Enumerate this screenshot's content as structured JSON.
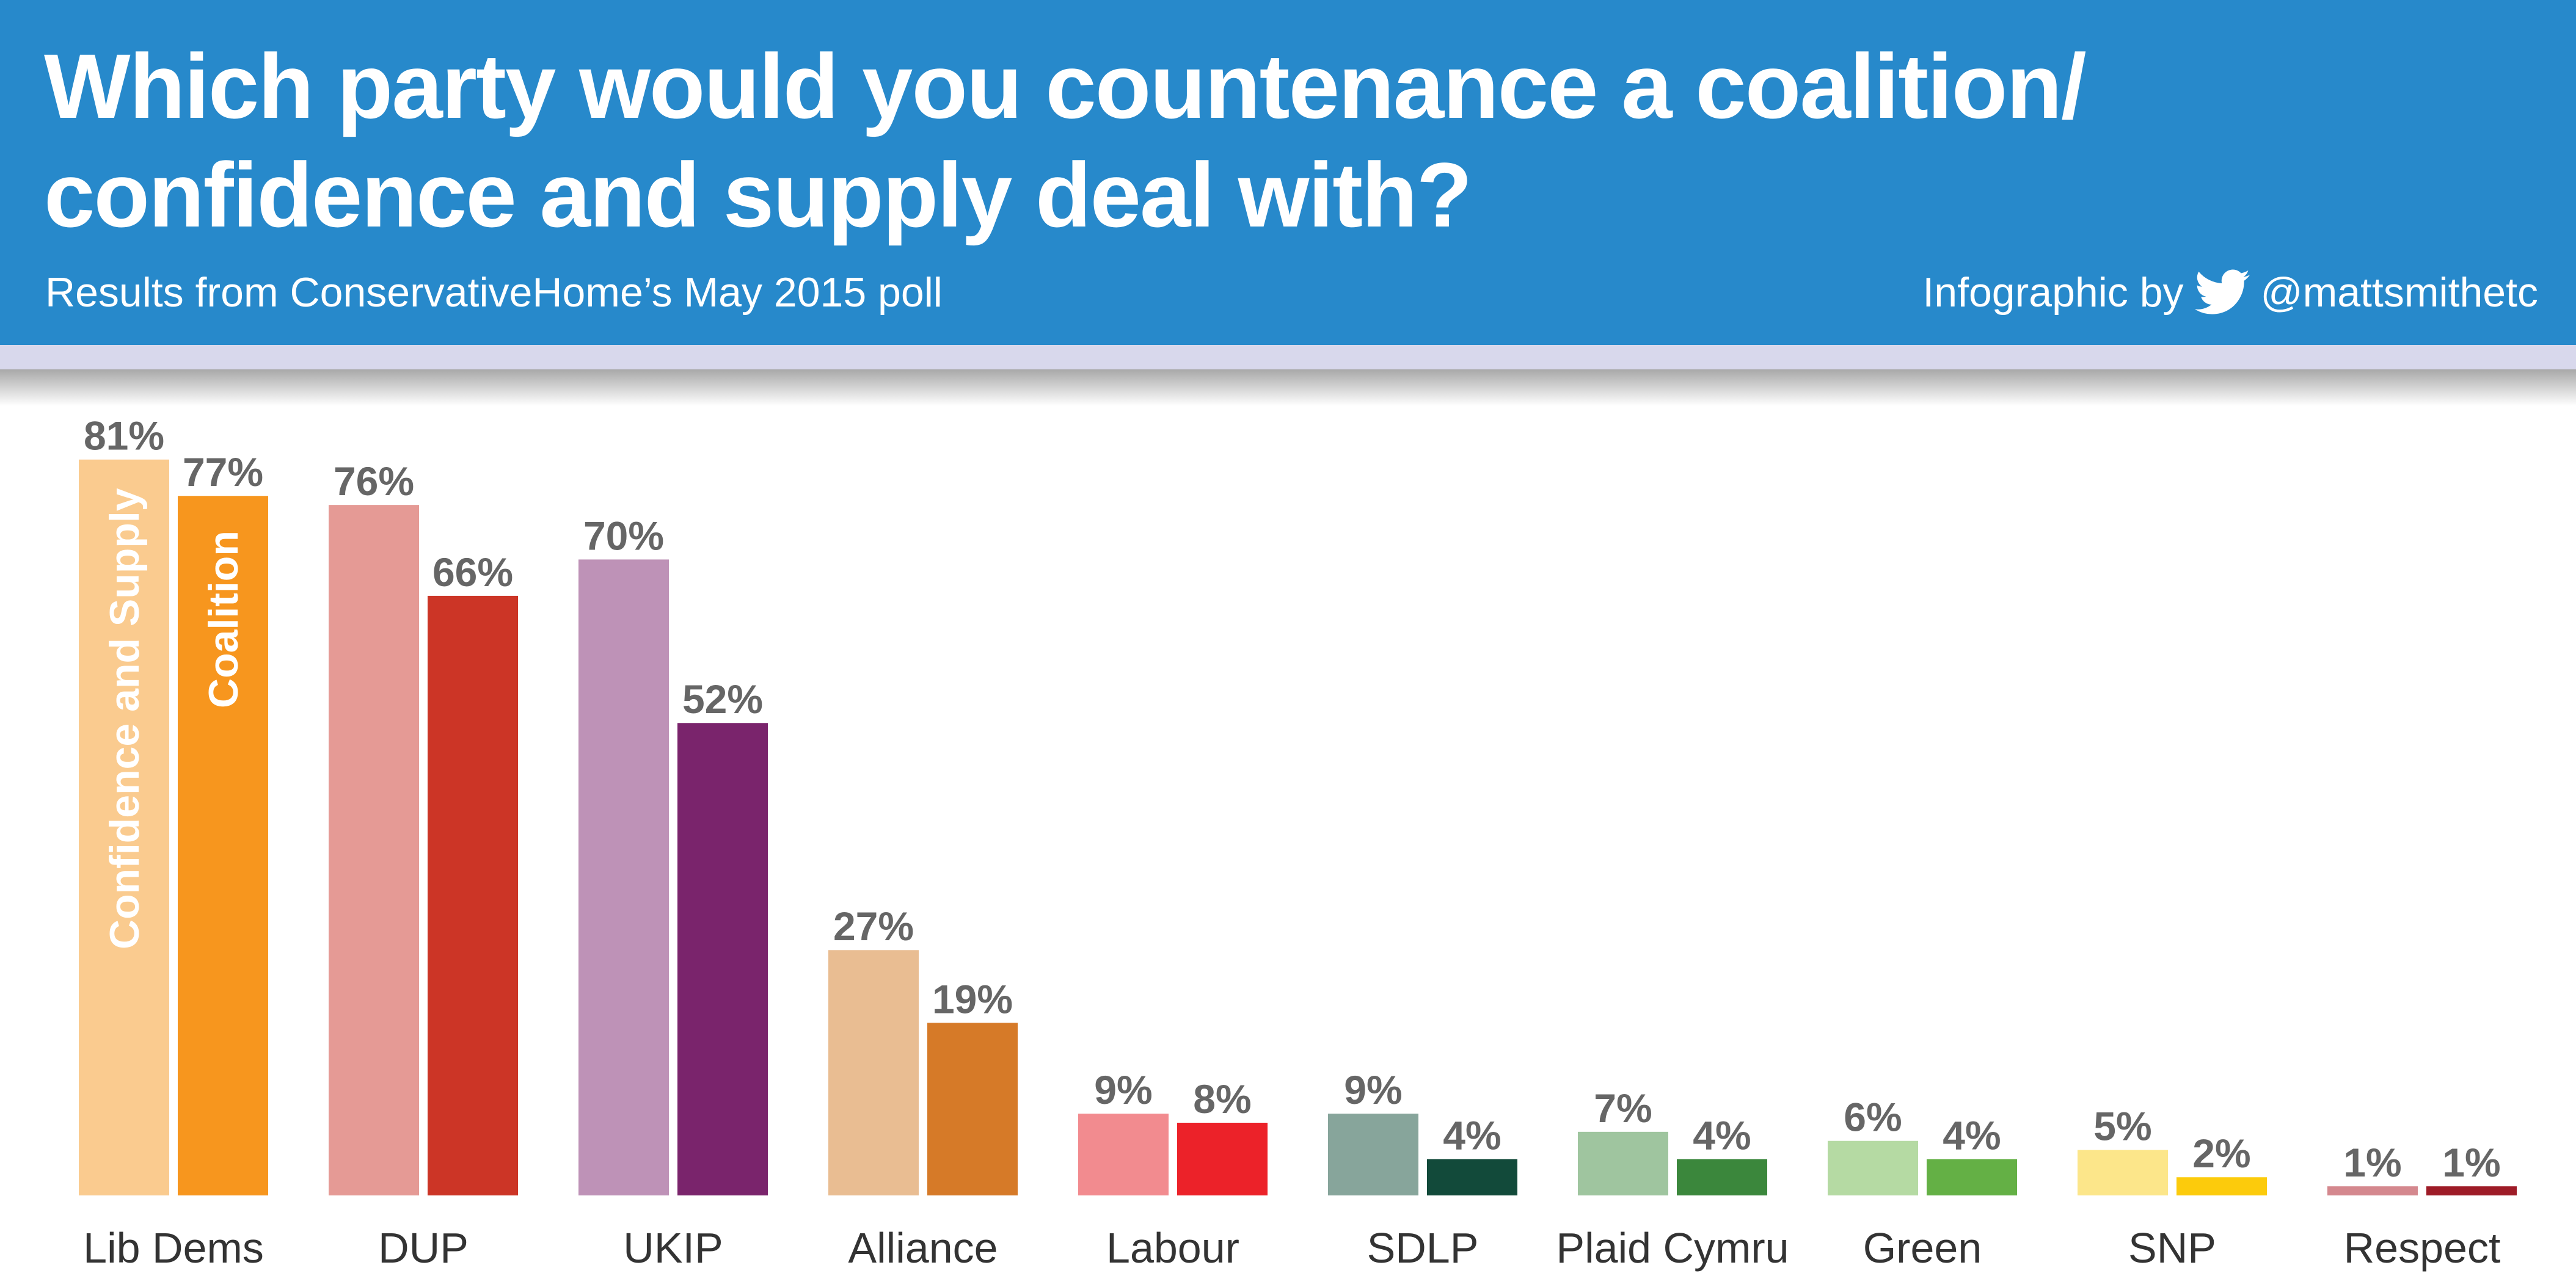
{
  "header": {
    "title": "Which party would you countenance a coalition/ confidence and supply deal with?",
    "subtitle": "Results from ConservativeHome’s May 2015 poll",
    "credit_prefix": "Infographic by",
    "credit_handle": "@mattsmithetc",
    "credit_icon": "twitter-bird-icon",
    "background_color": "#2789CB"
  },
  "chart_data": {
    "type": "bar",
    "title": "Which party would you countenance a coalition/ confidence and supply deal with?",
    "categories": [
      "Lib Dems",
      "DUP",
      "UKIP",
      "Alliance",
      "Labour",
      "SDLP",
      "Plaid Cymru",
      "Green",
      "SNP",
      "Respect"
    ],
    "series": [
      {
        "name": "Confidence and Supply",
        "values": [
          81,
          76,
          70,
          27,
          9,
          9,
          7,
          6,
          5,
          1
        ],
        "colors": [
          "#FACB8F",
          "#E59A95",
          "#BE92B7",
          "#E9BD92",
          "#F28B8F",
          "#87A59B",
          "#9FC59F",
          "#B5DAA3",
          "#FCE68A",
          "#D4888E"
        ]
      },
      {
        "name": "Coalition",
        "values": [
          77,
          66,
          52,
          19,
          8,
          4,
          4,
          4,
          2,
          1
        ],
        "colors": [
          "#F7961E",
          "#CC3526",
          "#7A246C",
          "#D67A28",
          "#EC2229",
          "#124A3A",
          "#3B873C",
          "#64B045",
          "#FCCB0C",
          "#9E1C27"
        ]
      }
    ],
    "value_suffix": "%",
    "ylim": [
      0,
      81
    ],
    "grid": false,
    "legend": "inside-first-bars"
  }
}
